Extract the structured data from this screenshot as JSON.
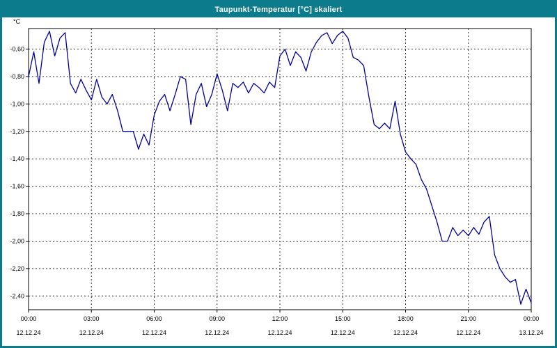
{
  "title": "Taupunkt-Temperatur [°C] skaliert",
  "colors": {
    "title_bar": "#0c7b8c",
    "frame": "#0c7b8c",
    "line": "#000099",
    "grid": "#333333",
    "plot_border": "#000000",
    "background": "#ffffff"
  },
  "chart_data": {
    "type": "line",
    "title": "Taupunkt-Temperatur [°C] skaliert",
    "xlabel": "",
    "ylabel": "°C",
    "grid": true,
    "grid_style": "dashed",
    "legend": "none",
    "xlim": [
      0,
      24
    ],
    "ylim": [
      -2.5,
      -0.45
    ],
    "x_start_hours": 0,
    "x_step_hours": 0.25,
    "x_ticks": [
      0,
      3,
      6,
      9,
      12,
      15,
      18,
      21,
      24
    ],
    "x_tick_labels": [
      "00:00",
      "03:00",
      "06:00",
      "09:00",
      "12:00",
      "15:00",
      "18:00",
      "21:00",
      "00:00"
    ],
    "x_tick_dates": [
      "12.12.24",
      "12.12.24",
      "12.12.24",
      "12.12.24",
      "12.12.24",
      "12.12.24",
      "12.12.24",
      "12.12.24",
      "13.12.24"
    ],
    "y_ticks": [
      -0.6,
      -0.8,
      -1.0,
      -1.2,
      -1.4,
      -1.6,
      -1.8,
      -2.0,
      -2.2,
      -2.4
    ],
    "y_tick_labels": [
      "-0,60",
      "-0,80",
      "-1,00",
      "-1,20",
      "-1,40",
      "-1,60",
      "-1,80",
      "-2,00",
      "-2,20",
      "-2,40"
    ],
    "x_hours": [
      0,
      0.25,
      0.5,
      0.75,
      1,
      1.25,
      1.5,
      1.75,
      2,
      2.25,
      2.5,
      2.75,
      3,
      3.25,
      3.5,
      3.75,
      4,
      4.25,
      4.5,
      4.75,
      5,
      5.25,
      5.5,
      5.75,
      6,
      6.25,
      6.5,
      6.75,
      7,
      7.25,
      7.5,
      7.75,
      8,
      8.25,
      8.5,
      8.75,
      9,
      9.25,
      9.5,
      9.75,
      10,
      10.25,
      10.5,
      10.75,
      11,
      11.25,
      11.5,
      11.75,
      12,
      12.25,
      12.5,
      12.75,
      13,
      13.25,
      13.5,
      13.75,
      14,
      14.25,
      14.5,
      14.75,
      15,
      15.25,
      15.5,
      15.75,
      16,
      16.25,
      16.5,
      16.75,
      17,
      17.25,
      17.5,
      17.75,
      18,
      18.25,
      18.5,
      18.75,
      19,
      19.25,
      19.5,
      19.75,
      20,
      20.25,
      20.5,
      20.75,
      21,
      21.25,
      21.5,
      21.75,
      22,
      22.25,
      22.5,
      22.75,
      23,
      23.25,
      23.5,
      23.75,
      24
    ],
    "y_values": [
      -0.8,
      -0.62,
      -0.85,
      -0.55,
      -0.47,
      -0.65,
      -0.52,
      -0.48,
      -0.85,
      -0.92,
      -0.82,
      -0.9,
      -0.97,
      -0.82,
      -0.95,
      -1.0,
      -0.93,
      -1.05,
      -1.2,
      -1.2,
      -1.2,
      -1.33,
      -1.22,
      -1.3,
      -1.08,
      -0.98,
      -0.93,
      -1.05,
      -0.93,
      -0.8,
      -0.82,
      -1.15,
      -0.93,
      -0.85,
      -1.02,
      -0.93,
      -0.78,
      -0.9,
      -1.05,
      -0.85,
      -0.88,
      -0.84,
      -0.92,
      -0.85,
      -0.88,
      -0.92,
      -0.84,
      -0.88,
      -0.65,
      -0.6,
      -0.72,
      -0.62,
      -0.66,
      -0.76,
      -0.62,
      -0.55,
      -0.5,
      -0.48,
      -0.56,
      -0.5,
      -0.47,
      -0.52,
      -0.66,
      -0.68,
      -0.72,
      -0.95,
      -1.15,
      -1.18,
      -1.14,
      -1.18,
      -0.98,
      -1.22,
      -1.35,
      -1.4,
      -1.44,
      -1.55,
      -1.62,
      -1.74,
      -1.86,
      -2.0,
      -2.0,
      -1.9,
      -1.96,
      -1.92,
      -1.96,
      -1.9,
      -1.95,
      -1.86,
      -1.82,
      -2.1,
      -2.2,
      -2.26,
      -2.3,
      -2.28,
      -2.46,
      -2.35,
      -2.45
    ]
  }
}
